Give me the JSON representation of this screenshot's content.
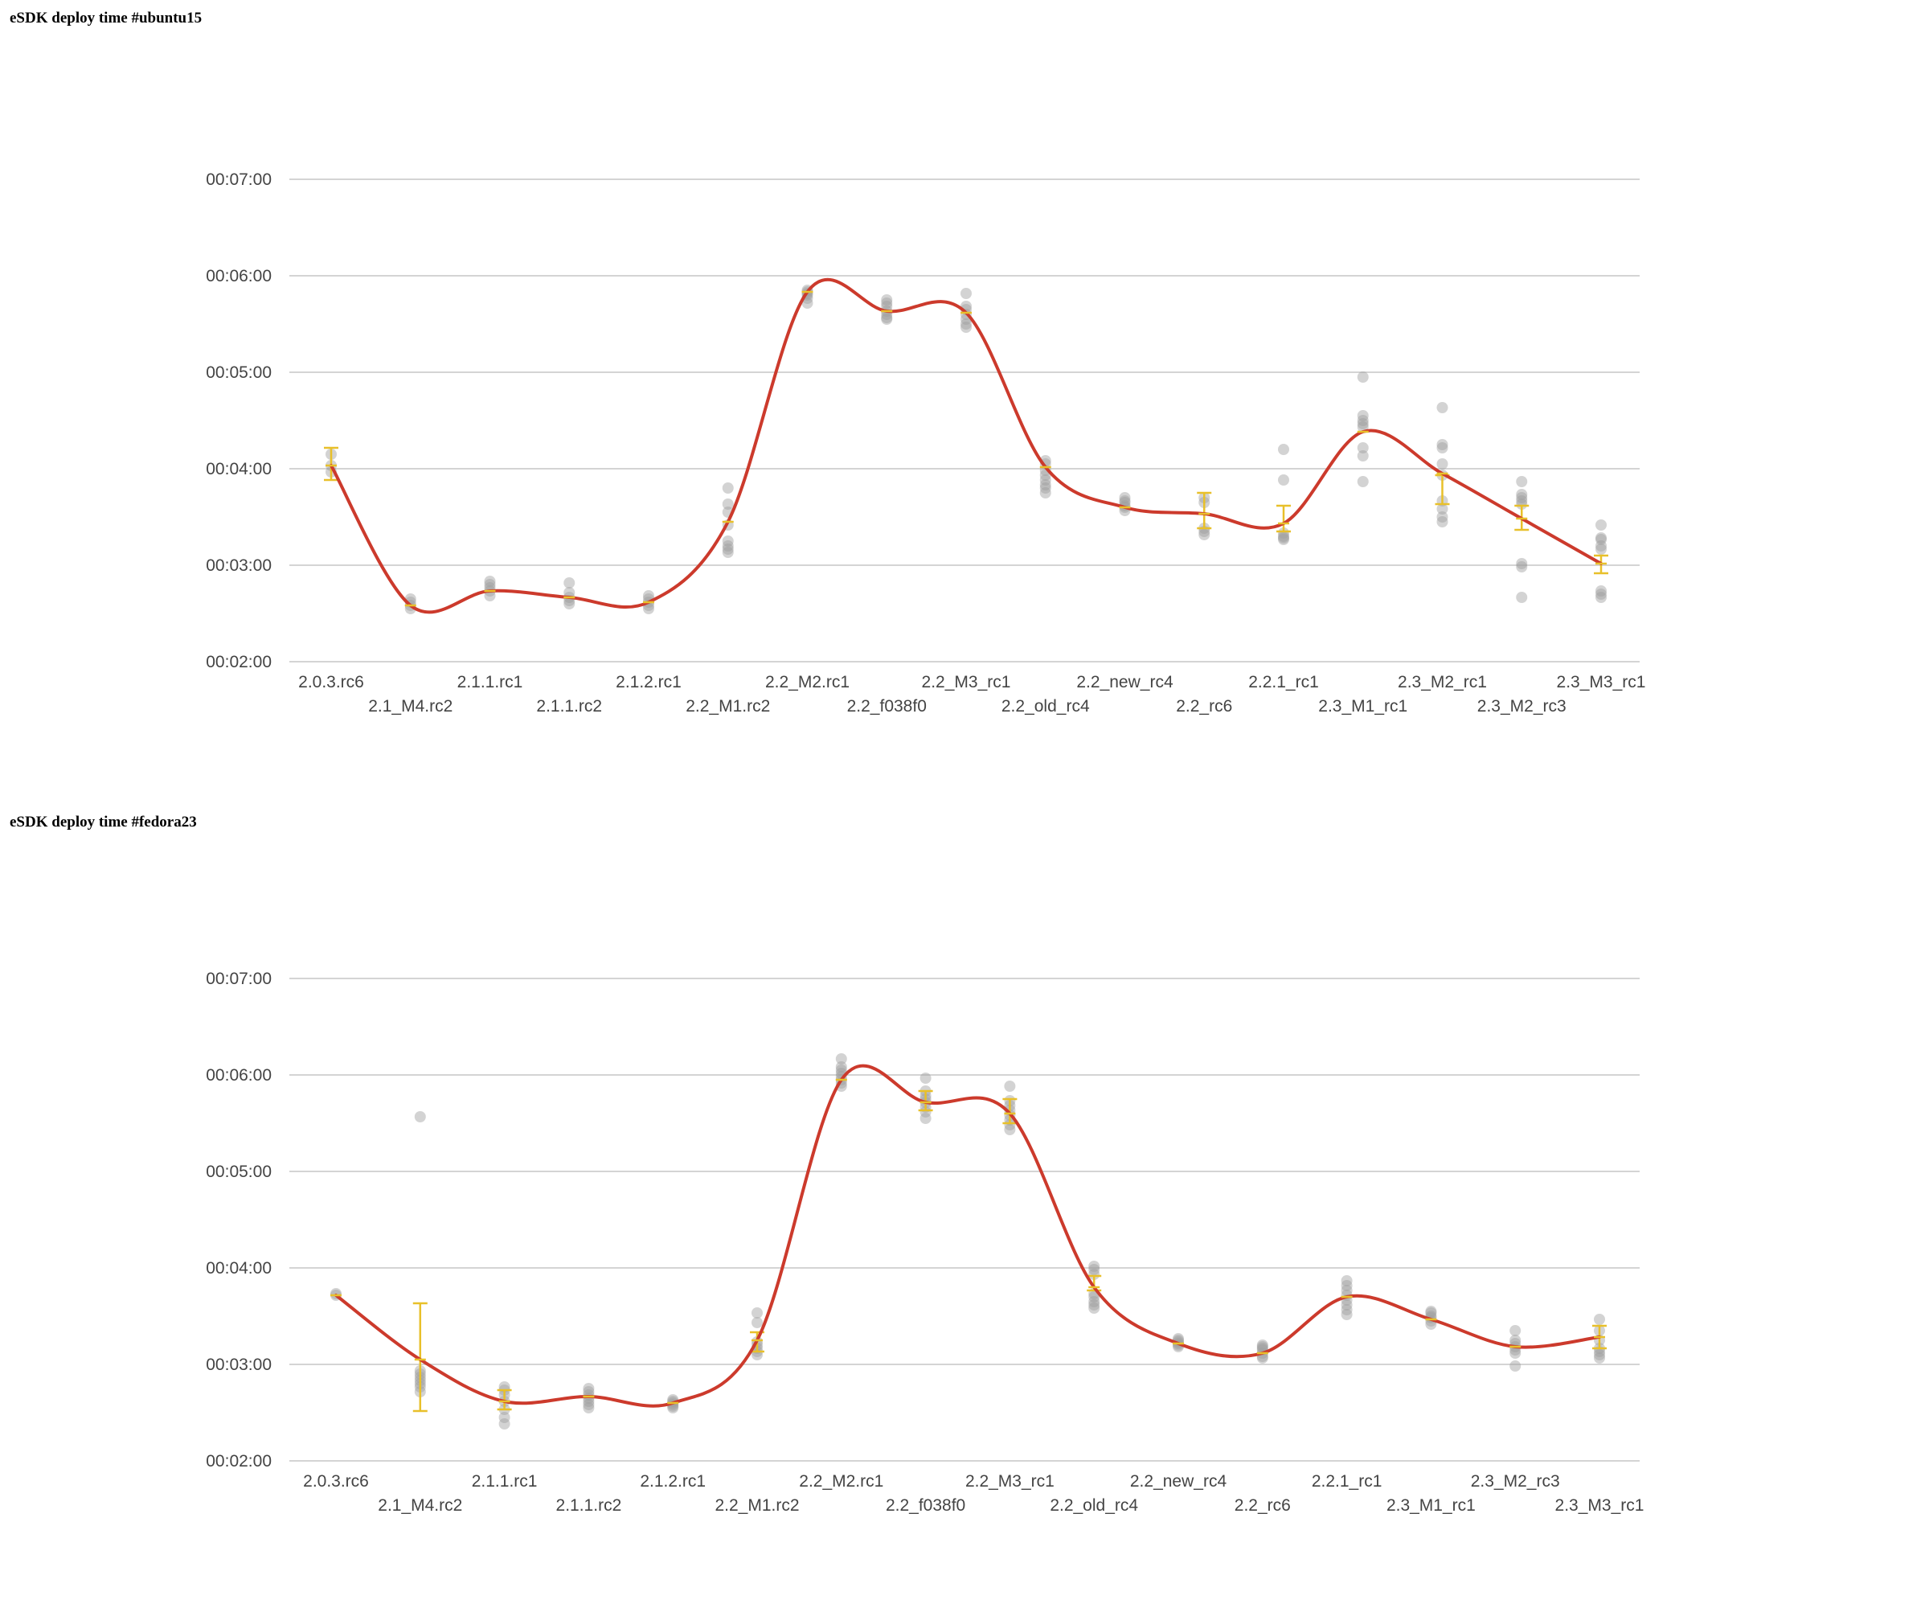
{
  "charts": [
    {
      "title": "eSDK deploy time #ubuntu15",
      "chart_data": {
        "type": "line",
        "title": "eSDK deploy time #ubuntu15",
        "xlabel": "",
        "ylabel": "",
        "y_unit": "seconds",
        "ylim": [
          120,
          420
        ],
        "ytick_values": [
          120,
          180,
          240,
          300,
          360,
          420
        ],
        "ytick_labels": [
          "00:02:00",
          "00:03:00",
          "00:04:00",
          "00:05:00",
          "00:06:00",
          "00:07:00"
        ],
        "grid": true,
        "legend": "none",
        "categories": [
          "2.0.3.rc6",
          "2.1_M4.rc2",
          "2.1.1.rc1",
          "2.1.1.rc2",
          "2.1.2.rc1",
          "2.2_M1.rc2",
          "2.2_M2.rc1",
          "2.2_f038f0",
          "2.2_M3_rc1",
          "2.2_old_rc4",
          "2.2_new_rc4",
          "2.2_rc6",
          "2.2.1_rc1",
          "2.3_M1_rc1",
          "2.3_M2_rc1",
          "2.3_M2_rc3",
          "2.3_M3_rc1"
        ],
        "series": [
          {
            "values": [
              242,
              155,
              164,
              160,
              157,
              207,
              350,
              338,
              337,
              241,
              216,
              212,
              206,
              263,
              237,
              209,
              181
            ]
          }
        ],
        "error_bars": [
          [
            233,
            253
          ],
          null,
          null,
          null,
          null,
          null,
          null,
          null,
          null,
          null,
          null,
          [
            203,
            225
          ],
          [
            201,
            217
          ],
          null,
          [
            218,
            236
          ],
          [
            202,
            217
          ],
          [
            175,
            186
          ]
        ],
        "samples": [
          [
            242,
            238,
            249
          ],
          [
            153,
            155,
            157,
            159
          ],
          [
            161,
            164,
            166,
            168,
            170
          ],
          [
            156,
            158,
            160,
            163,
            169
          ],
          [
            153,
            155,
            157,
            159,
            161
          ],
          [
            188,
            190,
            192,
            195,
            205,
            213,
            218,
            228
          ],
          [
            343,
            346,
            348,
            349,
            350,
            351
          ],
          [
            333,
            334,
            336,
            338,
            341,
            343,
            345
          ],
          [
            328,
            330,
            333,
            336,
            339,
            341,
            349
          ],
          [
            225,
            228,
            230,
            233,
            236,
            239,
            243,
            245
          ],
          [
            214,
            216,
            217,
            219,
            220,
            222
          ],
          [
            199,
            201,
            203,
            219,
            222
          ],
          [
            196,
            197,
            198,
            200,
            233,
            252
          ],
          [
            232,
            248,
            253,
            266,
            268,
            270,
            273,
            297
          ],
          [
            207,
            210,
            215,
            220,
            236,
            243,
            253,
            255,
            278
          ],
          [
            160,
            179,
            181,
            218,
            220,
            222,
            224,
            232
          ],
          [
            160,
            162,
            164,
            190,
            192,
            196,
            197,
            205
          ]
        ]
      }
    },
    {
      "title": "eSDK deploy time #fedora23",
      "chart_data": {
        "type": "line",
        "title": "eSDK deploy time #fedora23",
        "xlabel": "",
        "ylabel": "",
        "y_unit": "seconds",
        "ylim": [
          120,
          420
        ],
        "ytick_values": [
          120,
          180,
          240,
          300,
          360,
          420
        ],
        "ytick_labels": [
          "00:02:00",
          "00:03:00",
          "00:04:00",
          "00:05:00",
          "00:06:00",
          "00:07:00"
        ],
        "grid": true,
        "legend": "none",
        "categories": [
          "2.0.3.rc6",
          "2.1_M4.rc2",
          "2.1.1.rc1",
          "2.1.1.rc2",
          "2.1.2.rc1",
          "2.2_M1.rc2",
          "2.2_M2.rc1",
          "2.2_f038f0",
          "2.2_M3_rc1",
          "2.2_old_rc4",
          "2.2_new_rc4",
          "2.2_rc6",
          "2.2.1_rc1",
          "2.3_M1_rc1",
          "2.3_M2_rc3",
          "2.3_M3_rc1"
        ],
        "series": [
          {
            "values": [
              223,
              183,
              157,
              160,
              156,
              195,
              357,
              343,
              336,
              228,
              193,
              187,
              222,
              208,
              191,
              197
            ]
          }
        ],
        "error_bars": [
          null,
          [
            151,
            218
          ],
          [
            152,
            164
          ],
          null,
          null,
          [
            188,
            200
          ],
          null,
          [
            338,
            350
          ],
          [
            330,
            345
          ],
          [
            226,
            235
          ],
          null,
          null,
          null,
          null,
          null,
          [
            190,
            204
          ]
        ],
        "samples": [
          [
            223,
            224
          ],
          [
            163,
            166,
            168,
            170,
            172,
            174,
            176,
            334
          ],
          [
            143,
            147,
            152,
            157,
            161,
            164,
            166
          ],
          [
            153,
            155,
            157,
            159,
            161,
            163,
            165
          ],
          [
            153,
            154,
            155,
            156,
            157,
            158
          ],
          [
            186,
            188,
            190,
            192,
            194,
            206,
            212
          ],
          [
            353,
            355,
            357,
            359,
            361,
            363,
            365,
            370
          ],
          [
            333,
            337,
            340,
            343,
            345,
            347,
            350,
            358
          ],
          [
            326,
            329,
            332,
            335,
            338,
            341,
            344,
            353
          ],
          [
            215,
            217,
            219,
            222,
            224,
            236,
            239,
            241
          ],
          [
            191,
            192,
            193,
            194,
            195,
            196
          ],
          [
            184,
            185,
            187,
            189,
            190,
            191,
            192
          ],
          [
            211,
            214,
            217,
            220,
            223,
            226,
            229,
            232
          ],
          [
            205,
            207,
            209,
            210,
            212,
            213
          ],
          [
            179,
            187,
            189,
            191,
            193,
            195,
            201
          ],
          [
            184,
            186,
            188,
            190,
            195,
            201,
            208
          ]
        ]
      }
    }
  ]
}
